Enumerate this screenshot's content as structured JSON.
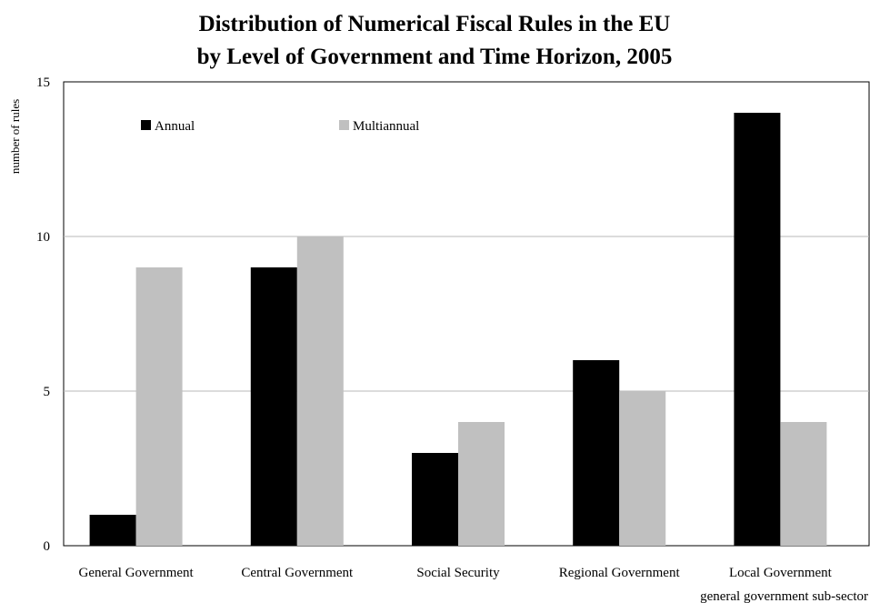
{
  "chart_data": {
    "type": "bar",
    "title": "Distribution of Numerical Fiscal Rules in the EU",
    "subtitle": "by Level of Government and Time Horizon, 2005",
    "ylabel": "number of rules",
    "xlabel": "general government sub-sector",
    "categories": [
      "General Government",
      "Central Government",
      "Social Security",
      "Regional Government",
      "Local Government"
    ],
    "series": [
      {
        "name": "Annual",
        "color": "#000000",
        "values": [
          1,
          9,
          3,
          6,
          14
        ]
      },
      {
        "name": "Multiannual",
        "color": "#c0c0c0",
        "values": [
          9,
          10,
          4,
          5,
          4
        ]
      }
    ],
    "ylim": [
      0,
      15
    ],
    "yticks": [
      0,
      5,
      10,
      15
    ],
    "grid": true,
    "legend": "top-left"
  }
}
